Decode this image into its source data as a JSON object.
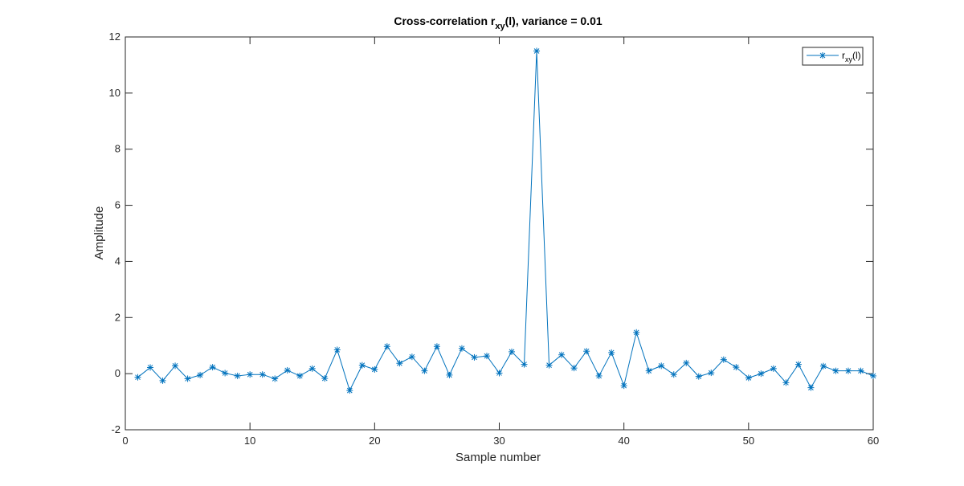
{
  "chart_data": {
    "type": "line",
    "title": "Cross-correlation r",
    "title_subscript": "xy",
    "title_tail": "(l), variance = 0.01",
    "xlabel": "Sample number",
    "ylabel": "Amplitude",
    "xlim": [
      0,
      60
    ],
    "ylim": [
      -2,
      12
    ],
    "xticks": [
      0,
      10,
      20,
      30,
      40,
      50,
      60
    ],
    "yticks": [
      -2,
      0,
      2,
      4,
      6,
      8,
      10,
      12
    ],
    "grid": false,
    "legend_position": "top-right",
    "marker": "asterisk",
    "series": [
      {
        "legend_main": "r",
        "legend_sub": "xy",
        "legend_tail": "(l)",
        "color": "#0072BD",
        "x": [
          1,
          2,
          3,
          4,
          5,
          6,
          7,
          8,
          9,
          10,
          11,
          12,
          13,
          14,
          15,
          16,
          17,
          18,
          19,
          20,
          21,
          22,
          23,
          24,
          25,
          26,
          27,
          28,
          29,
          30,
          31,
          32,
          33,
          34,
          35,
          36,
          37,
          38,
          39,
          40,
          41,
          42,
          43,
          44,
          45,
          46,
          47,
          48,
          49,
          50,
          51,
          52,
          53,
          54,
          55,
          56,
          57,
          58,
          59,
          60
        ],
        "y": [
          -0.13,
          0.22,
          -0.25,
          0.28,
          -0.18,
          -0.05,
          0.23,
          0.02,
          -0.08,
          -0.03,
          -0.03,
          -0.18,
          0.12,
          -0.08,
          0.18,
          -0.17,
          0.85,
          -0.6,
          0.3,
          0.15,
          0.97,
          0.37,
          0.6,
          0.1,
          0.97,
          -0.05,
          0.9,
          0.58,
          0.63,
          0.02,
          0.78,
          0.33,
          11.5,
          0.3,
          0.67,
          0.2,
          0.8,
          -0.08,
          0.75,
          -0.43,
          1.47,
          0.1,
          0.28,
          -0.03,
          0.38,
          -0.1,
          0.03,
          0.5,
          0.23,
          -0.15,
          0.0,
          0.18,
          -0.32,
          0.33,
          -0.5,
          0.27,
          0.1,
          0.1,
          0.1,
          -0.08
        ]
      }
    ]
  }
}
